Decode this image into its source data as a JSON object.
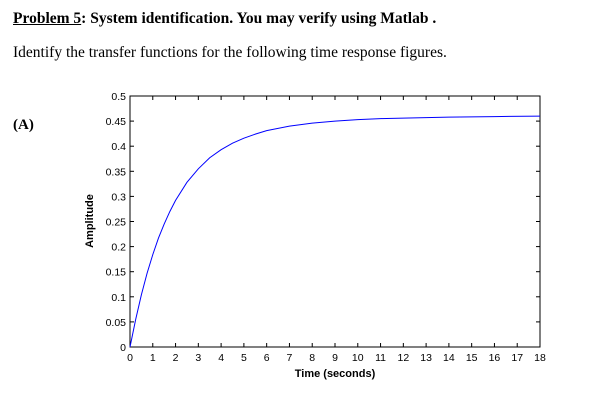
{
  "document": {
    "heading_problem": "Problem 5",
    "heading_rest": ": System identification. You may verify using Matlab .",
    "instruction": "Identify the transfer functions for the following time response figures.",
    "part_label": "(A)"
  },
  "chart_data": {
    "type": "line",
    "title": "",
    "xlabel": "Time (seconds)",
    "ylabel": "Amplitude",
    "xlim": [
      0,
      18
    ],
    "ylim": [
      0,
      0.5
    ],
    "x_ticks": [
      "0",
      "1",
      "2",
      "3",
      "4",
      "5",
      "6",
      "7",
      "8",
      "9",
      "10",
      "11",
      "12",
      "13",
      "14",
      "15",
      "16",
      "17",
      "18"
    ],
    "y_ticks": [
      "0",
      "0.05",
      "0.1",
      "0.15",
      "0.2",
      "0.25",
      "0.3",
      "0.35",
      "0.4",
      "0.45",
      "0.5"
    ],
    "grid": false,
    "line_color": "#0000ff",
    "series": [
      {
        "x": [
          0,
          0.25,
          0.5,
          0.75,
          1,
          1.25,
          1.5,
          1.75,
          2,
          2.5,
          3,
          3.5,
          4,
          4.5,
          5,
          5.5,
          6,
          7,
          8,
          9,
          10,
          11,
          12,
          14,
          16,
          18
        ],
        "y": [
          0,
          0.055,
          0.104,
          0.147,
          0.184,
          0.217,
          0.245,
          0.27,
          0.292,
          0.328,
          0.355,
          0.377,
          0.393,
          0.406,
          0.416,
          0.424,
          0.431,
          0.44,
          0.446,
          0.45,
          0.453,
          0.455,
          0.456,
          0.458,
          0.459,
          0.46
        ]
      }
    ]
  }
}
